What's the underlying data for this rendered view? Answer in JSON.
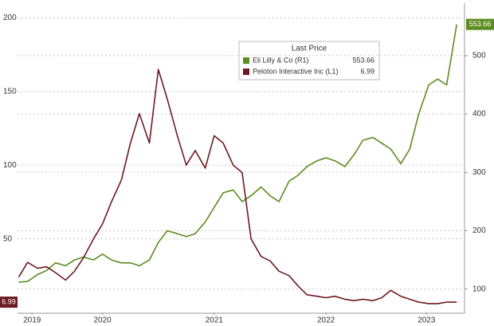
{
  "chart_data": {
    "type": "line",
    "legend_title": "Last Price",
    "x": [
      2019.75,
      2019.83,
      2019.92,
      2020.0,
      2020.08,
      2020.17,
      2020.25,
      2020.33,
      2020.42,
      2020.5,
      2020.58,
      2020.67,
      2020.75,
      2020.83,
      2020.92,
      2021.0,
      2021.08,
      2021.17,
      2021.25,
      2021.33,
      2021.42,
      2021.5,
      2021.58,
      2021.67,
      2021.75,
      2021.83,
      2021.92,
      2022.0,
      2022.08,
      2022.17,
      2022.25,
      2022.33,
      2022.42,
      2022.5,
      2022.58,
      2022.67,
      2022.75,
      2022.83,
      2022.92,
      2023.0,
      2023.08,
      2023.17,
      2023.25,
      2023.33,
      2023.42,
      2023.5,
      2023.58,
      2023.67
    ],
    "xlim": [
      2019.74,
      2023.74
    ],
    "xticks": [
      {
        "value": 2019.87,
        "label": "2019"
      },
      {
        "value": 2020.5,
        "label": "2020"
      },
      {
        "value": 2021.5,
        "label": "2021"
      },
      {
        "value": 2022.5,
        "label": "2022"
      },
      {
        "value": 2023.4,
        "label": "2023"
      }
    ],
    "ylim": [
      0,
      210
    ],
    "yticks": [
      50,
      100,
      150,
      200
    ],
    "y2lim": [
      60,
      590
    ],
    "y2ticks": [
      100,
      200,
      300,
      400,
      500
    ],
    "grid": true,
    "series": [
      {
        "name": "Eli Lilly & Co (R1)",
        "color": "#5b8c1f",
        "axis": "y2",
        "values": [
          112,
          113,
          125,
          132,
          145,
          140,
          150,
          155,
          150,
          160,
          150,
          145,
          145,
          140,
          150,
          180,
          200,
          195,
          190,
          195,
          215,
          240,
          265,
          270,
          250,
          260,
          275,
          260,
          250,
          285,
          295,
          310,
          320,
          325,
          320,
          310,
          330,
          355,
          360,
          350,
          340,
          315,
          340,
          400,
          450,
          460,
          450,
          553.66
        ]
      },
      {
        "name": "Peloton Interactive Inc (L1)",
        "color": "#6e1a22",
        "values": [
          24,
          34,
          30,
          31,
          27,
          22,
          28,
          37,
          50,
          60,
          75,
          90,
          115,
          135,
          115,
          165,
          145,
          120,
          100,
          110,
          98,
          120,
          115,
          100,
          95,
          50,
          38,
          35,
          28,
          25,
          18,
          12,
          11,
          10,
          11,
          9,
          8,
          9,
          8,
          10,
          15,
          11,
          9,
          7,
          6,
          6,
          7,
          6.99
        ]
      }
    ]
  }
}
